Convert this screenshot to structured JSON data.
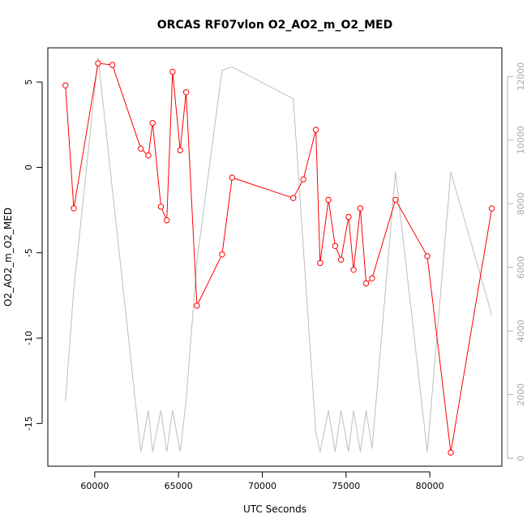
{
  "chart_data": {
    "type": "line",
    "title": "ORCAS RF07vlon O2_AO2_m_O2_MED",
    "xlabel": "UTC Seconds",
    "ylabel": "O2_AO2_m_O2_MED",
    "xlim": [
      57200,
      84300
    ],
    "ylim": [
      -17.5,
      7.0
    ],
    "y2lim": [
      -250,
      12900
    ],
    "x_ticks": [
      60000,
      65000,
      70000,
      75000,
      80000
    ],
    "x_tick_labels": [
      "60000",
      "65000",
      "70000",
      "75000",
      "80000"
    ],
    "y_ticks": [
      5,
      0,
      -5,
      -10,
      -15
    ],
    "y_tick_labels": [
      "5",
      "0",
      "-5",
      "-10",
      "-15"
    ],
    "y2_ticks": [
      0,
      2000,
      4000,
      6000,
      8000,
      10000,
      12000
    ],
    "y2_tick_labels": [
      "0",
      "2000",
      "4000",
      "6000",
      "8000",
      "10000",
      "12000"
    ],
    "grid": false,
    "legend": "none",
    "colors": {
      "primary": "#ff0000",
      "secondary": "#bebebe"
    },
    "series": [
      {
        "axis": "left",
        "marker": "open-circle",
        "color": "#ff0000",
        "x": [
          58250,
          58750,
          60200,
          61050,
          62750,
          63200,
          63450,
          63950,
          64300,
          64650,
          65100,
          65450,
          66100,
          67600,
          68200,
          71850,
          72450,
          73200,
          73450,
          73950,
          74350,
          74700,
          75150,
          75450,
          75850,
          76200,
          76550,
          77950,
          79850,
          81250,
          83700
        ],
        "y": [
          4.8,
          -2.4,
          6.1,
          6.0,
          1.1,
          0.7,
          2.6,
          -2.3,
          -3.1,
          5.6,
          1.0,
          4.4,
          -8.1,
          -5.1,
          -0.6,
          -1.8,
          -0.7,
          2.2,
          -5.6,
          -1.9,
          -4.6,
          -5.4,
          -2.9,
          -6.0,
          -2.4,
          -6.8,
          -6.5,
          -1.9,
          -5.2,
          -16.7,
          -2.4
        ]
      },
      {
        "axis": "right",
        "marker": "none",
        "color": "#bebebe",
        "x": [
          58250,
          58750,
          60200,
          62750,
          63200,
          63450,
          63950,
          64300,
          64650,
          65100,
          65450,
          66100,
          67600,
          68200,
          71850,
          73200,
          73450,
          73950,
          74350,
          74700,
          75150,
          75450,
          75850,
          76200,
          76550,
          77950,
          79850,
          81250,
          83700
        ],
        "y": [
          1800,
          5300,
          12600,
          200,
          1500,
          200,
          1500,
          200,
          1500,
          200,
          1800,
          6200,
          12200,
          12300,
          11300,
          800,
          200,
          1500,
          200,
          1500,
          200,
          1500,
          200,
          1500,
          300,
          9000,
          200,
          9000,
          4500
        ]
      }
    ]
  }
}
